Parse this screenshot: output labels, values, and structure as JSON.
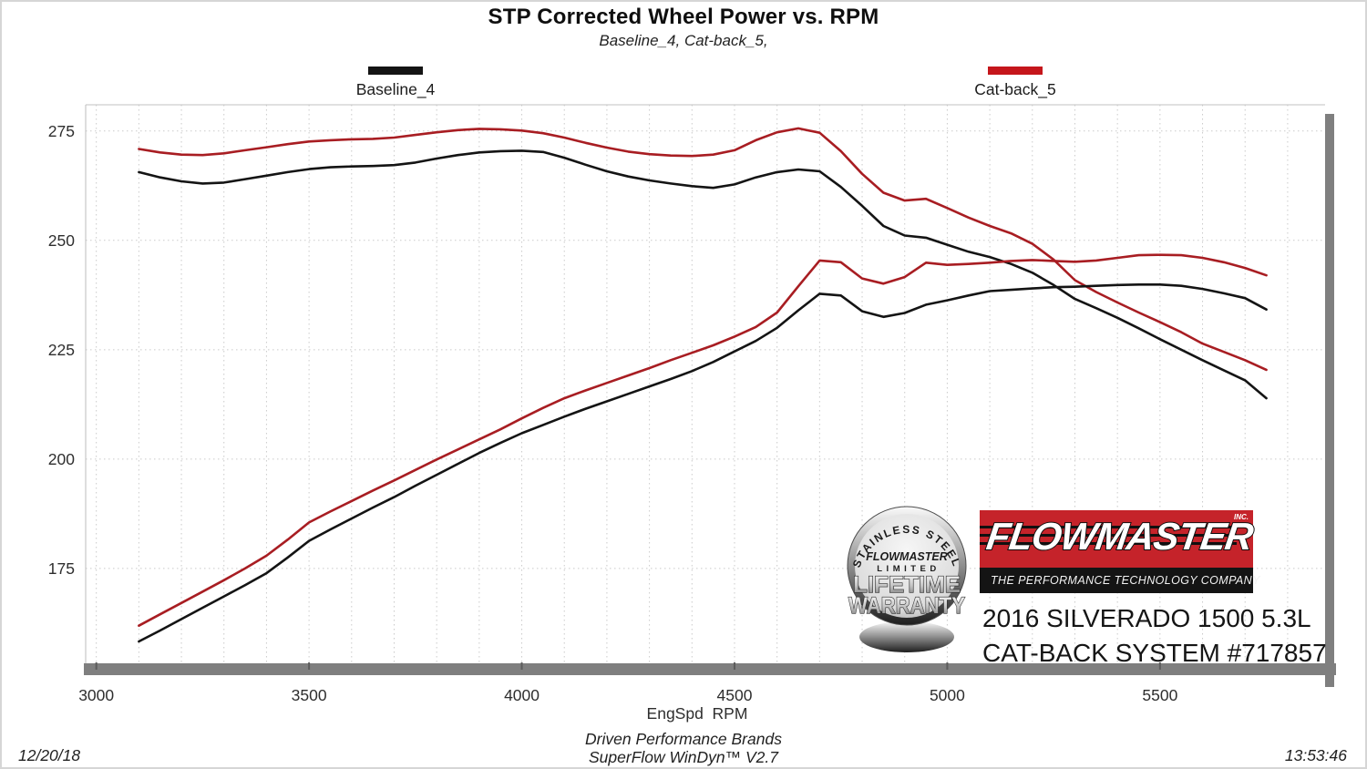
{
  "title": "STP Corrected Wheel Power vs. RPM",
  "subtitle": "Baseline_4, Cat-back_5,",
  "legend": {
    "baseline": {
      "label": "Baseline_4",
      "color": "#141414"
    },
    "catback": {
      "label": "Cat-back_5",
      "color": "#c5161b"
    }
  },
  "axes": {
    "x_label": "EngSpd  RPM",
    "x_ticks": [
      "3000",
      "3500",
      "4000",
      "4500",
      "5000",
      "5500"
    ],
    "y_ticks": [
      "175",
      "200",
      "225",
      "250",
      "275"
    ]
  },
  "chart_data": {
    "type": "line",
    "title": "STP Corrected Wheel Power vs. RPM",
    "xlabel": "EngSpd RPM",
    "ylabel": "",
    "x_range": [
      2975,
      5888
    ],
    "y_range": [
      153.3,
      281.0
    ],
    "x_grid": {
      "start": 3000,
      "end": 5800,
      "step": 100
    },
    "y_grid": {
      "start": 175,
      "end": 275,
      "step": 25
    },
    "grid_style": "dashed",
    "legend_position": "top",
    "rpm": [
      3100,
      3150,
      3200,
      3250,
      3300,
      3350,
      3400,
      3450,
      3500,
      3550,
      3600,
      3650,
      3700,
      3750,
      3800,
      3850,
      3900,
      3950,
      4000,
      4050,
      4100,
      4150,
      4200,
      4250,
      4300,
      4350,
      4400,
      4450,
      4500,
      4550,
      4600,
      4650,
      4700,
      4750,
      4800,
      4850,
      4900,
      4950,
      5000,
      5050,
      5100,
      5150,
      5200,
      5250,
      5300,
      5350,
      5400,
      5450,
      5500,
      5550,
      5600,
      5650,
      5700,
      5750
    ],
    "series": [
      {
        "id": "baseline-upper",
        "name": "Baseline_4 (upper trace)",
        "color": "#141414",
        "values": [
          265.6,
          264.4,
          263.5,
          263.0,
          263.2,
          264.0,
          264.8,
          265.6,
          266.3,
          266.7,
          266.9,
          267.0,
          267.2,
          267.8,
          268.7,
          269.5,
          270.1,
          270.4,
          270.5,
          270.2,
          268.9,
          267.3,
          265.8,
          264.6,
          263.7,
          263.0,
          262.4,
          262.0,
          262.8,
          264.4,
          265.6,
          266.2,
          265.8,
          262.2,
          257.9,
          253.3,
          251.1,
          250.6,
          249.0,
          247.4,
          246.2,
          244.6,
          242.6,
          239.8,
          236.6,
          234.5,
          232.3,
          229.9,
          227.4,
          225.0,
          222.6,
          220.3,
          218.0,
          213.9
        ]
      },
      {
        "id": "catback-upper",
        "name": "Cat-back_5 (upper trace)",
        "color": "#a81d22",
        "values": [
          270.9,
          270.1,
          269.6,
          269.5,
          269.9,
          270.6,
          271.3,
          272.0,
          272.6,
          272.9,
          273.1,
          273.2,
          273.5,
          274.1,
          274.7,
          275.2,
          275.5,
          275.4,
          275.1,
          274.5,
          273.5,
          272.3,
          271.2,
          270.3,
          269.7,
          269.4,
          269.3,
          269.6,
          270.6,
          272.9,
          274.7,
          275.6,
          274.6,
          270.4,
          265.2,
          260.9,
          259.1,
          259.5,
          257.4,
          255.2,
          253.3,
          251.6,
          249.2,
          245.6,
          240.9,
          238.2,
          235.8,
          233.5,
          231.3,
          229.0,
          226.4,
          224.5,
          222.6,
          220.4
        ]
      },
      {
        "id": "baseline-lower",
        "name": "Baseline_4 (lower trace)",
        "color": "#141414",
        "values": [
          158.3,
          160.8,
          163.4,
          166.0,
          168.6,
          171.2,
          173.9,
          177.5,
          181.3,
          183.9,
          186.4,
          188.9,
          191.3,
          193.9,
          196.4,
          198.9,
          201.4,
          203.7,
          205.9,
          207.8,
          209.7,
          211.5,
          213.2,
          214.9,
          216.6,
          218.3,
          220.1,
          222.2,
          224.6,
          227.0,
          230.0,
          234.0,
          237.8,
          237.4,
          233.8,
          232.5,
          233.4,
          235.3,
          236.3,
          237.4,
          238.4,
          238.7,
          239.0,
          239.3,
          239.4,
          239.6,
          239.8,
          239.9,
          239.9,
          239.6,
          238.9,
          237.9,
          236.8,
          234.2
        ]
      },
      {
        "id": "catback-lower",
        "name": "Cat-back_5 (lower trace)",
        "color": "#a81d22",
        "values": [
          161.9,
          164.5,
          167.1,
          169.7,
          172.3,
          175.0,
          177.9,
          181.6,
          185.5,
          188.0,
          190.4,
          192.8,
          195.1,
          197.5,
          199.9,
          202.2,
          204.5,
          206.8,
          209.3,
          211.7,
          213.9,
          215.7,
          217.4,
          219.1,
          220.8,
          222.6,
          224.3,
          226.0,
          228.0,
          230.2,
          233.5,
          239.5,
          245.4,
          245.0,
          241.3,
          240.1,
          241.6,
          244.9,
          244.4,
          244.6,
          244.9,
          245.3,
          245.5,
          245.3,
          245.1,
          245.4,
          246.0,
          246.6,
          246.7,
          246.6,
          246.0,
          245.0,
          243.7,
          242.0
        ]
      }
    ]
  },
  "watermark": {
    "badge": {
      "arc_text": "STAINLESS STEEL",
      "brand": "FLOWMASTER",
      "line1": "LIMITED",
      "line2": "LIFETIME",
      "line3": "WARRANTY"
    },
    "logo": {
      "brand": "FLOWMASTER",
      "inc": "INC.",
      "tagline": "THE PERFORMANCE TECHNOLOGY COMPANY",
      "red": "#c5232a"
    },
    "vehicle": {
      "line1": "2016 SILVERADO 1500 5.3L",
      "line2": "CAT-BACK SYSTEM #717857"
    }
  },
  "footer": {
    "date": "12/20/18",
    "brand_line": "Driven Performance Brands",
    "software_line": "SuperFlow WinDyn™ V2.7",
    "time": "13:53:46"
  }
}
